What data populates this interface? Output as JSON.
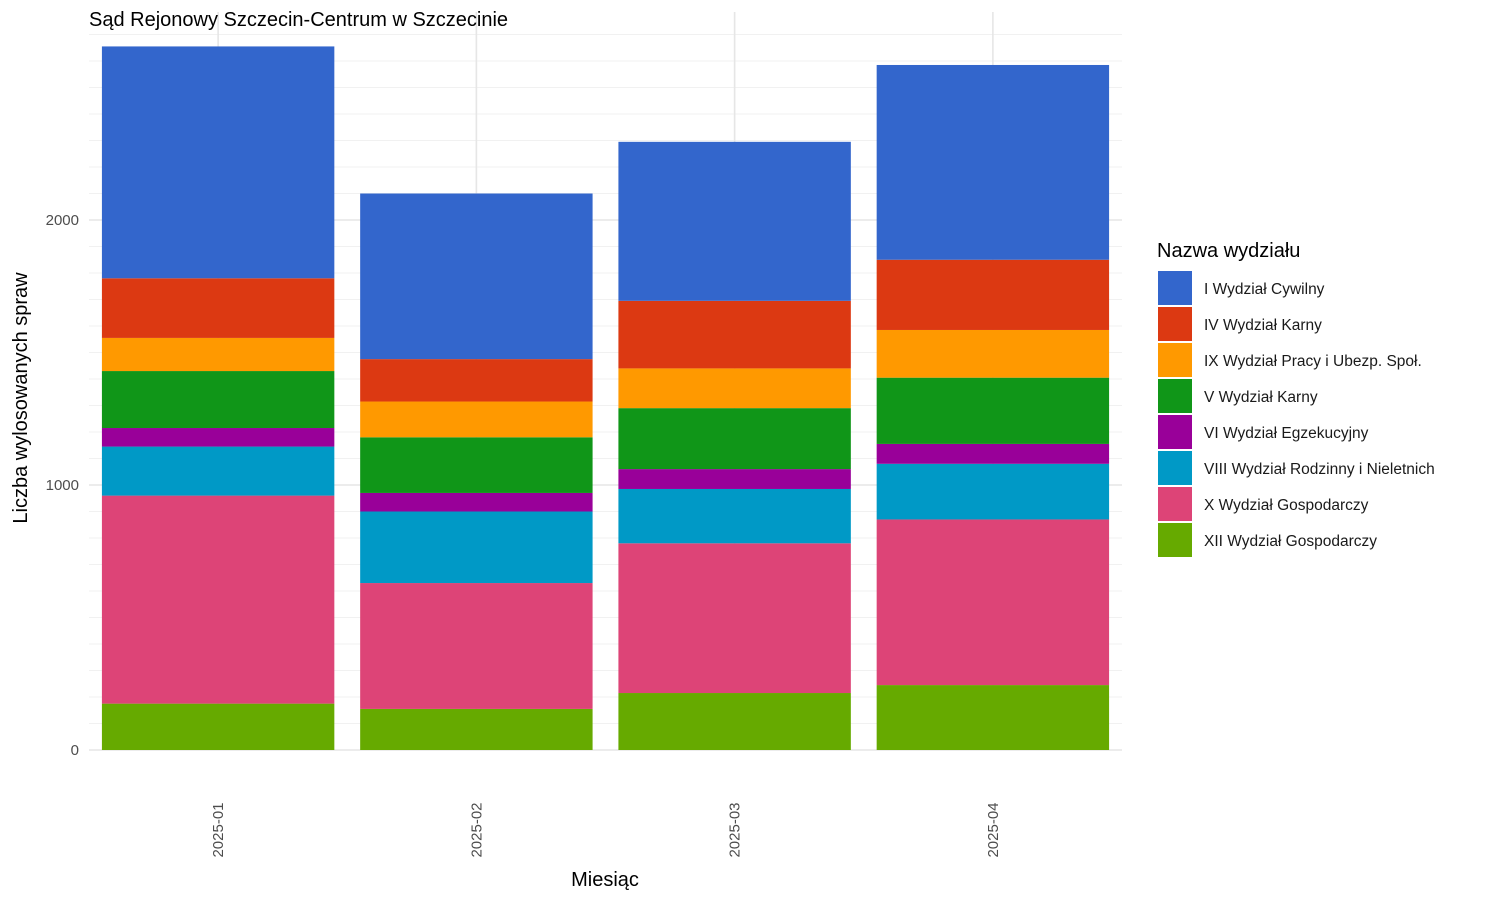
{
  "chart_data": {
    "type": "bar",
    "stacked": true,
    "title": "Sąd Rejonowy Szczecin-Centrum w Szczecinie",
    "xlabel": "Miesiąc",
    "ylabel": "Liczba wylosowanych spraw",
    "ylim": [
      0,
      2700
    ],
    "yticks": [
      0,
      1000,
      2000
    ],
    "ytick_labels": [
      "0",
      "1000",
      "2000"
    ],
    "grid": true,
    "legend_title": "Nazwa wydziału",
    "legend_position": "right",
    "categories": [
      "2025-01",
      "2025-02",
      "2025-03",
      "2025-04"
    ],
    "series": [
      {
        "name": "I Wydział Cywilny",
        "color": "#3366CC",
        "values": [
          875,
          625,
          600,
          735
        ]
      },
      {
        "name": "IV Wydział Karny",
        "color": "#DC3912",
        "values": [
          225,
          160,
          255,
          265
        ]
      },
      {
        "name": "IX Wydział Pracy i Ubezp. Społ.",
        "color": "#FF9900",
        "values": [
          125,
          135,
          150,
          180
        ]
      },
      {
        "name": "V Wydział Karny",
        "color": "#109618",
        "values": [
          215,
          210,
          230,
          250
        ]
      },
      {
        "name": "VI Wydział Egzekucyjny",
        "color": "#990099",
        "values": [
          70,
          70,
          75,
          75
        ]
      },
      {
        "name": "VIII Wydział Rodzinny i Nieletnich",
        "color": "#0099C6",
        "values": [
          185,
          270,
          205,
          210
        ]
      },
      {
        "name": "X Wydział Gospodarczy",
        "color": "#DD4477",
        "values": [
          785,
          475,
          565,
          625
        ]
      },
      {
        "name": "XII Wydział Gospodarczy",
        "color": "#66AA00",
        "values": [
          175,
          155,
          215,
          245
        ]
      }
    ]
  }
}
